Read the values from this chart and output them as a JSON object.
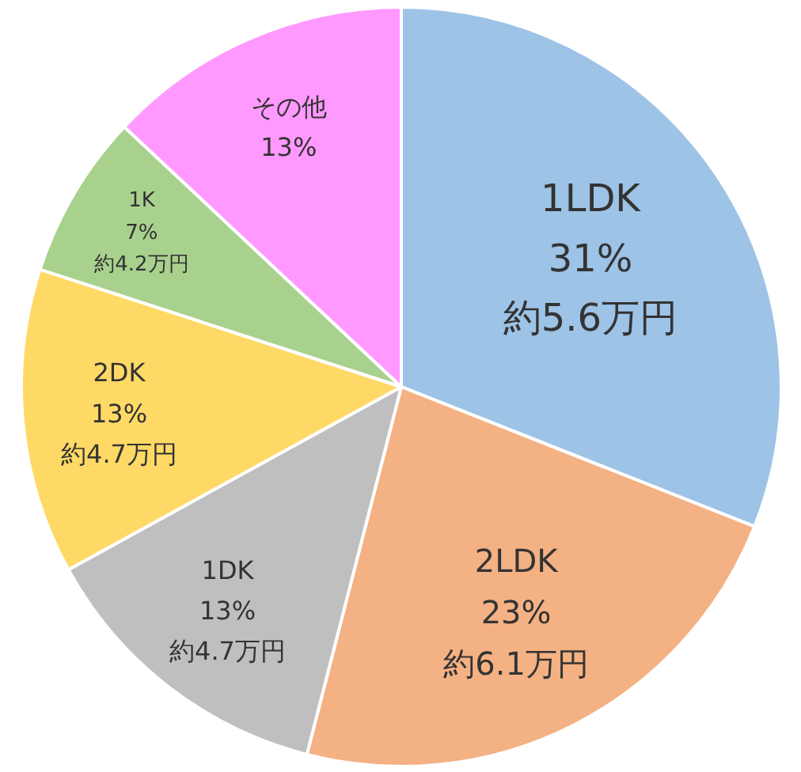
{
  "chart_data": {
    "type": "pie",
    "categories": [
      "1LDK",
      "2LDK",
      "1DK",
      "2DK",
      "1K",
      "その他"
    ],
    "values": [
      31,
      23,
      13,
      13,
      7,
      13
    ],
    "colors": [
      "#9dc3e6",
      "#f4b183",
      "#bfbfbf",
      "#ffd966",
      "#a9d18e",
      "#ff99ff"
    ],
    "value_labels": [
      "31%\n約5.6万円",
      "23%\n約6.1万円",
      "13%\n約4.7万円",
      "13%\n約4.7万円",
      "7%\n約4.2万円",
      "13%"
    ]
  }
}
